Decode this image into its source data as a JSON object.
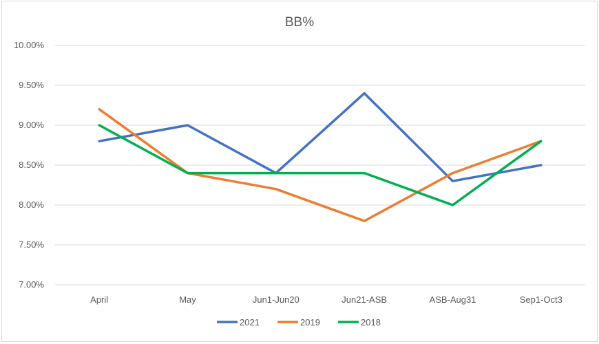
{
  "chart_data": {
    "type": "line",
    "title": "BB%",
    "categories": [
      "April",
      "May",
      "Jun1-Jun20",
      "Jun21-ASB",
      "ASB-Aug31",
      "Sep1-Oct3"
    ],
    "ylim": [
      0.07,
      0.1
    ],
    "yticks": [
      "10.00%",
      "9.50%",
      "9.00%",
      "8.50%",
      "8.00%",
      "7.50%",
      "7.00%"
    ],
    "ytick_values": [
      0.1,
      0.095,
      0.09,
      0.085,
      0.08,
      0.075,
      0.07
    ],
    "grid": true,
    "legend_position": "bottom",
    "series": [
      {
        "name": "2021",
        "color": "#4472c4",
        "values": [
          0.088,
          0.09,
          0.084,
          0.094,
          0.083,
          0.085
        ]
      },
      {
        "name": "2019",
        "color": "#ed7d31",
        "values": [
          0.092,
          0.084,
          0.082,
          0.078,
          0.084,
          0.088
        ]
      },
      {
        "name": "2018",
        "color": "#00b050",
        "values": [
          0.09,
          0.084,
          0.084,
          0.084,
          0.08,
          0.088
        ]
      }
    ]
  }
}
